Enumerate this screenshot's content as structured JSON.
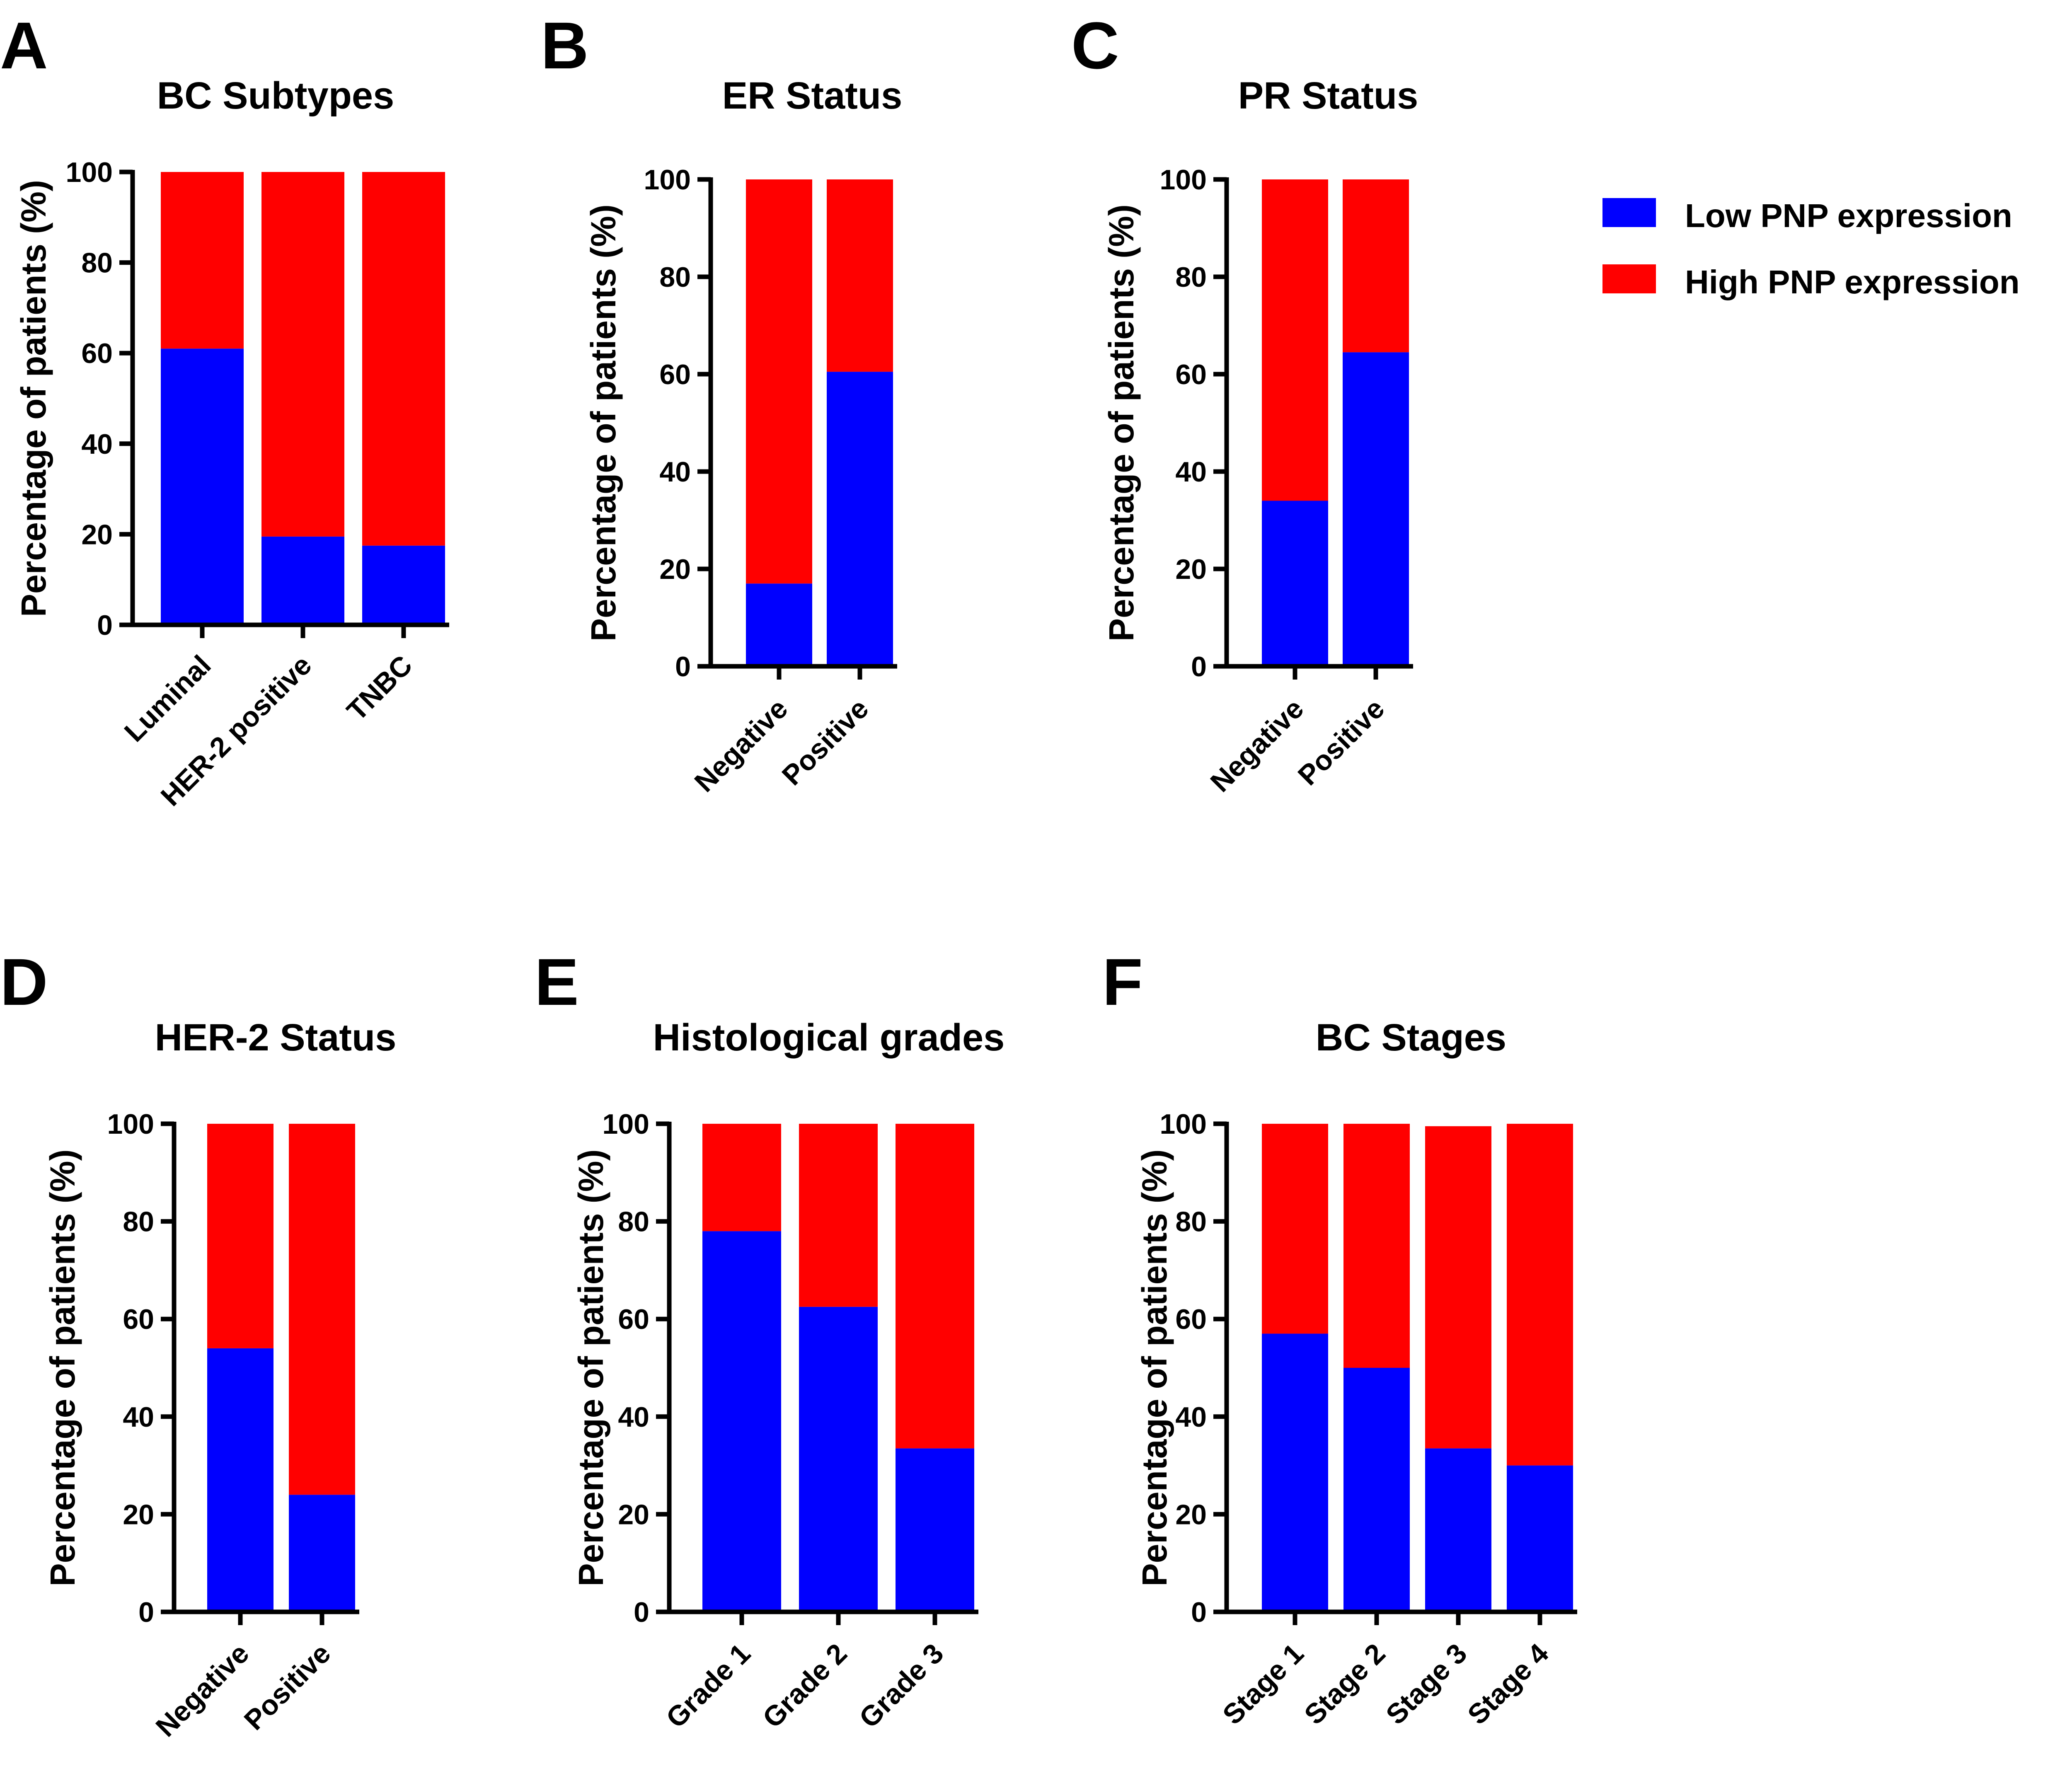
{
  "colors": {
    "low": "#0000FF",
    "high": "#FF0000"
  },
  "legend": [
    {
      "label": "Low PNP expression",
      "color": "#0000FF"
    },
    {
      "label": "High PNP expression",
      "color": "#FF0000"
    }
  ],
  "chart_data": [
    {
      "letter": "A",
      "type": "bar",
      "stacked": true,
      "title": "BC Subtypes",
      "ylabel": "Percentage of patients (%)",
      "xlabel": "",
      "ylim": [
        0,
        100
      ],
      "yticks": [
        0,
        20,
        40,
        60,
        80,
        100
      ],
      "categories": [
        "Luminal",
        "HER-2 positive",
        "TNBC"
      ],
      "series": [
        {
          "name": "Low PNP expression",
          "values": [
            61,
            19.5,
            17.5
          ]
        },
        {
          "name": "High PNP expression",
          "values": [
            39,
            80.5,
            82.5
          ]
        }
      ]
    },
    {
      "letter": "B",
      "type": "bar",
      "stacked": true,
      "title": "ER Status",
      "ylabel": "Percentage of patients (%)",
      "xlabel": "",
      "ylim": [
        0,
        100
      ],
      "yticks": [
        0,
        20,
        40,
        60,
        80,
        100
      ],
      "categories": [
        "Negative",
        "Positive"
      ],
      "series": [
        {
          "name": "Low PNP expression",
          "values": [
            17,
            60.5
          ]
        },
        {
          "name": "High PNP expression",
          "values": [
            83,
            39.5
          ]
        }
      ]
    },
    {
      "letter": "C",
      "type": "bar",
      "stacked": true,
      "title": "PR Status",
      "ylabel": "Percentage of patients (%)",
      "xlabel": "",
      "ylim": [
        0,
        100
      ],
      "yticks": [
        0,
        20,
        40,
        60,
        80,
        100
      ],
      "categories": [
        "Negative",
        "Positive"
      ],
      "series": [
        {
          "name": "Low PNP expression",
          "values": [
            34,
            64.5
          ]
        },
        {
          "name": "High PNP expression",
          "values": [
            66,
            35.5
          ]
        }
      ]
    },
    {
      "letter": "D",
      "type": "bar",
      "stacked": true,
      "title": "HER-2 Status",
      "ylabel": "Percentage of patients (%)",
      "xlabel": "",
      "ylim": [
        0,
        100
      ],
      "yticks": [
        0,
        20,
        40,
        60,
        80,
        100
      ],
      "categories": [
        "Negative",
        "Positive"
      ],
      "series": [
        {
          "name": "Low PNP expression",
          "values": [
            54,
            24
          ]
        },
        {
          "name": "High PNP expression",
          "values": [
            46,
            76
          ]
        }
      ]
    },
    {
      "letter": "E",
      "type": "bar",
      "stacked": true,
      "title": "Histological grades",
      "ylabel": "Percentage of patients (%)",
      "xlabel": "",
      "ylim": [
        0,
        100
      ],
      "yticks": [
        0,
        20,
        40,
        60,
        80,
        100
      ],
      "categories": [
        "Grade 1",
        "Grade 2",
        "Grade 3"
      ],
      "series": [
        {
          "name": "Low PNP expression",
          "values": [
            78,
            62.5,
            33.5
          ]
        },
        {
          "name": "High PNP expression",
          "values": [
            22,
            37.5,
            66.5
          ]
        }
      ]
    },
    {
      "letter": "F",
      "type": "bar",
      "stacked": true,
      "title": "BC Stages",
      "ylabel": "Percentage of patients (%)",
      "xlabel": "",
      "ylim": [
        0,
        100
      ],
      "yticks": [
        0,
        20,
        40,
        60,
        80,
        100
      ],
      "categories": [
        "Stage 1",
        "Stage 2",
        "Stage 3",
        "Stage 4"
      ],
      "series": [
        {
          "name": "Low PNP expression",
          "values": [
            57,
            50,
            33.5,
            30
          ]
        },
        {
          "name": "High PNP expression",
          "values": [
            43,
            50,
            66,
            70
          ]
        }
      ]
    }
  ]
}
